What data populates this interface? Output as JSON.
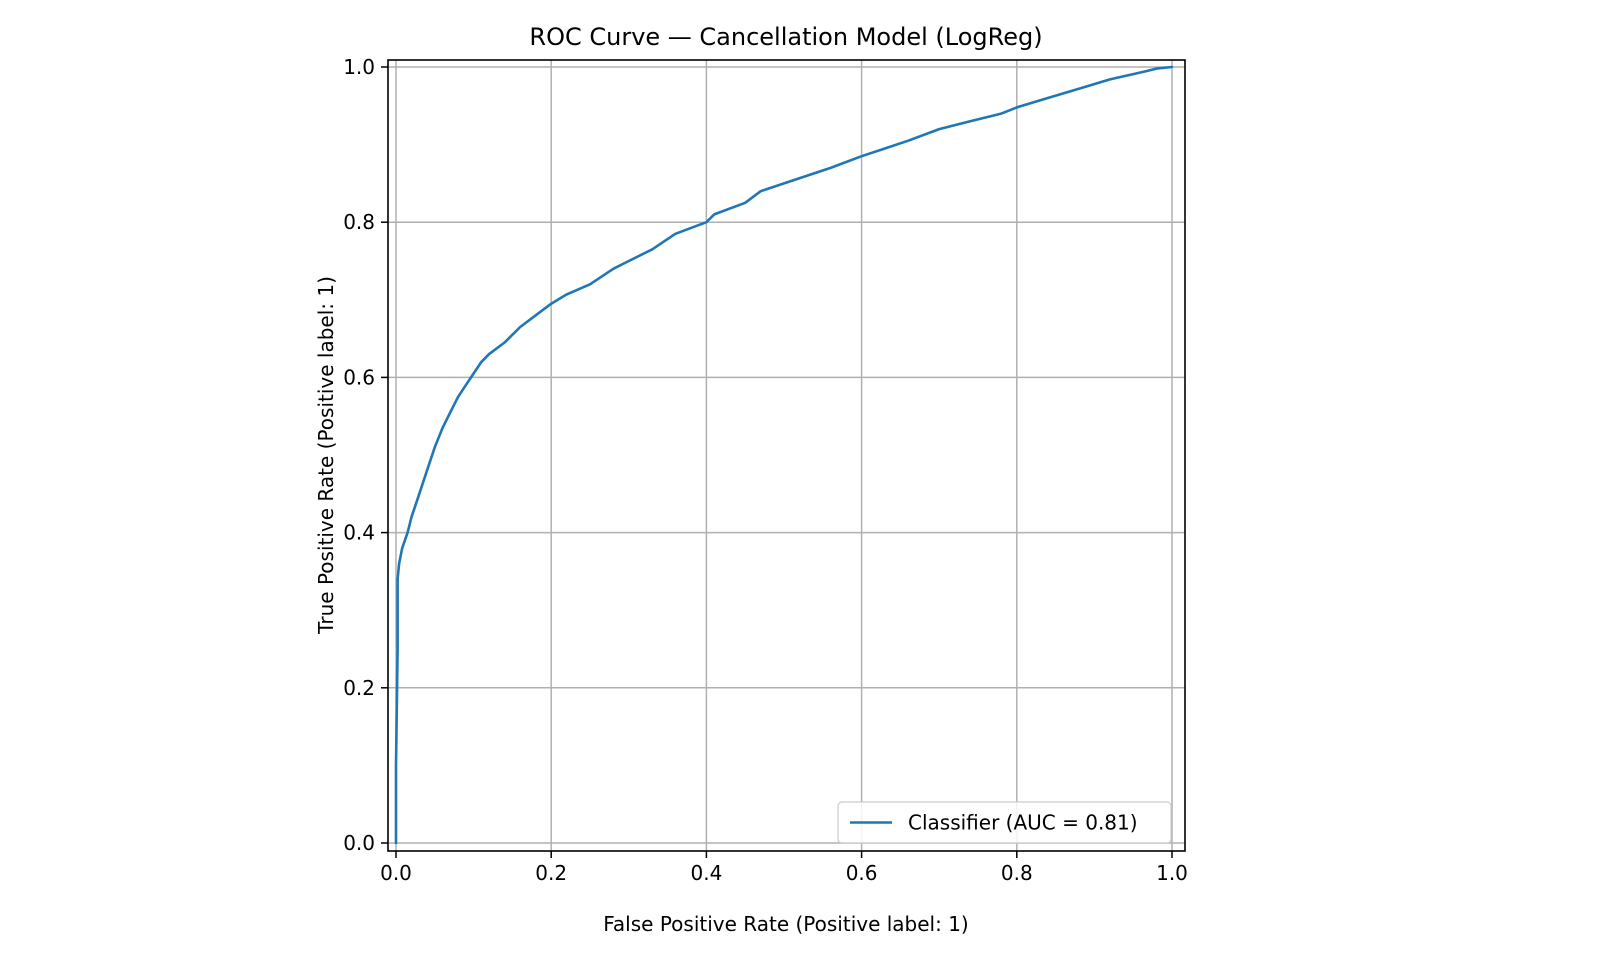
{
  "chart_data": {
    "type": "line",
    "title": "ROC Curve — Cancellation Model (LogReg)",
    "xlabel": "False Positive Rate (Positive label: 1)",
    "ylabel": "True Positive Rate (Positive label: 1)",
    "xlim": [
      0.0,
      1.0
    ],
    "ylim": [
      0.0,
      1.0
    ],
    "xticks": [
      "0.0",
      "0.2",
      "0.4",
      "0.6",
      "0.8",
      "1.0"
    ],
    "yticks": [
      "0.0",
      "0.2",
      "0.4",
      "0.6",
      "0.8",
      "1.0"
    ],
    "grid": true,
    "legend_position": "bottom-right",
    "series": [
      {
        "name": "Classifier (AUC = 0.81)",
        "color": "#1f77b4",
        "points": [
          [
            0.0,
            0.0
          ],
          [
            0.0,
            0.1
          ],
          [
            0.002,
            0.25
          ],
          [
            0.002,
            0.34
          ],
          [
            0.004,
            0.36
          ],
          [
            0.008,
            0.38
          ],
          [
            0.015,
            0.4
          ],
          [
            0.02,
            0.42
          ],
          [
            0.03,
            0.45
          ],
          [
            0.04,
            0.48
          ],
          [
            0.05,
            0.51
          ],
          [
            0.06,
            0.535
          ],
          [
            0.07,
            0.555
          ],
          [
            0.08,
            0.575
          ],
          [
            0.09,
            0.59
          ],
          [
            0.1,
            0.605
          ],
          [
            0.11,
            0.62
          ],
          [
            0.12,
            0.63
          ],
          [
            0.14,
            0.645
          ],
          [
            0.16,
            0.665
          ],
          [
            0.18,
            0.68
          ],
          [
            0.2,
            0.695
          ],
          [
            0.22,
            0.707
          ],
          [
            0.25,
            0.72
          ],
          [
            0.28,
            0.74
          ],
          [
            0.3,
            0.75
          ],
          [
            0.33,
            0.765
          ],
          [
            0.36,
            0.785
          ],
          [
            0.4,
            0.8
          ],
          [
            0.41,
            0.81
          ],
          [
            0.45,
            0.825
          ],
          [
            0.47,
            0.84
          ],
          [
            0.5,
            0.85
          ],
          [
            0.53,
            0.86
          ],
          [
            0.56,
            0.87
          ],
          [
            0.6,
            0.885
          ],
          [
            0.63,
            0.895
          ],
          [
            0.66,
            0.905
          ],
          [
            0.7,
            0.92
          ],
          [
            0.74,
            0.93
          ],
          [
            0.78,
            0.94
          ],
          [
            0.8,
            0.948
          ],
          [
            0.84,
            0.96
          ],
          [
            0.88,
            0.972
          ],
          [
            0.92,
            0.984
          ],
          [
            0.96,
            0.993
          ],
          [
            0.98,
            0.998
          ],
          [
            1.0,
            1.0
          ]
        ]
      }
    ]
  }
}
